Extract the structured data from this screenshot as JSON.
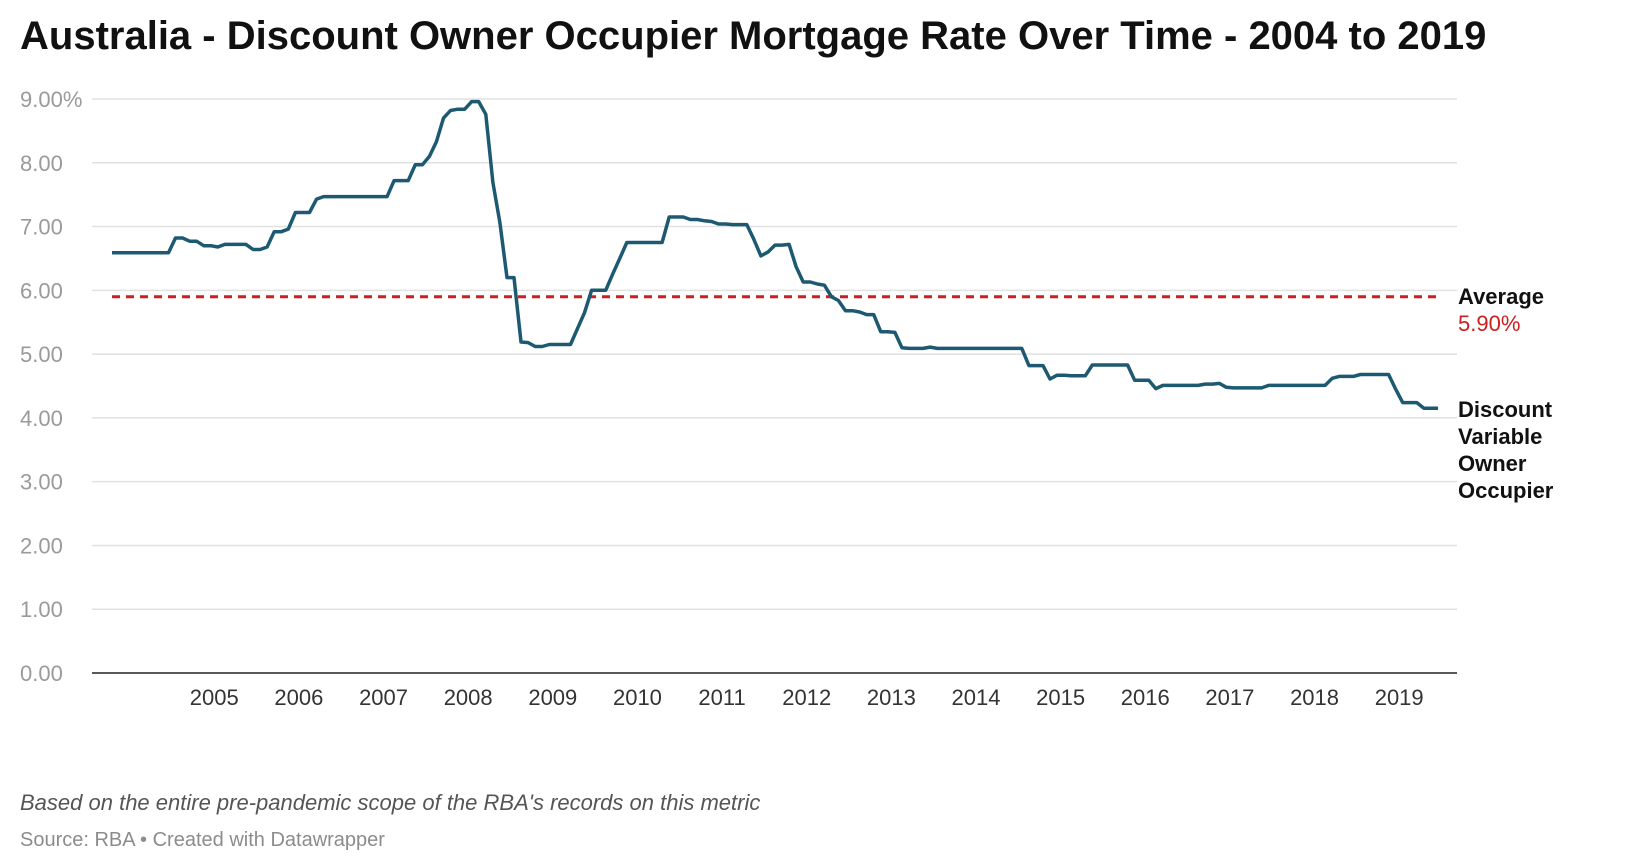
{
  "title": "Australia - Discount Owner Occupier Mortgage Rate Over Time - 2004 to 2019",
  "note": "Based on the entire pre-pandemic scope of the RBA's records on this metric",
  "source": "Source: RBA • Created with Datawrapper",
  "chart_data": {
    "type": "line",
    "title": "Australia - Discount Owner Occupier Mortgage Rate Over Time - 2004 to 2019",
    "x_tick_labels": [
      "2005",
      "2006",
      "2007",
      "2008",
      "2009",
      "2010",
      "2011",
      "2012",
      "2013",
      "2014",
      "2015",
      "2016",
      "2017",
      "2018",
      "2019"
    ],
    "y_tick_labels": [
      "9.00%",
      "8.00",
      "7.00",
      "6.00",
      "5.00",
      "4.00",
      "3.00",
      "2.00",
      "1.00",
      "0.00"
    ],
    "ylim": [
      0,
      9
    ],
    "grid": true,
    "series": [
      {
        "name": "Discount Variable Owner Occupier",
        "color": "#1d5a72",
        "x": [
          2004.25,
          2004.917,
          2005.0,
          2005.083,
          2005.167,
          2005.25,
          2005.333,
          2005.417,
          2005.5,
          2005.583,
          2005.667,
          2005.75,
          2005.833,
          2005.917,
          2006.0,
          2006.083,
          2006.167,
          2006.25,
          2006.333,
          2006.417,
          2006.5,
          2006.583,
          2006.667,
          2006.75,
          2006.833,
          2006.917,
          2007.0,
          2007.083,
          2007.167,
          2007.5,
          2007.583,
          2007.667,
          2007.75,
          2007.833,
          2007.917,
          2008.0,
          2008.083,
          2008.167,
          2008.25,
          2008.333,
          2008.417,
          2008.5,
          2008.583,
          2008.667,
          2008.75,
          2008.833,
          2008.917,
          2009.0,
          2009.083,
          2009.167,
          2009.25,
          2009.333,
          2009.417,
          2009.5,
          2009.583,
          2009.667,
          2009.75,
          2009.833,
          2009.917,
          2010.0,
          2010.083,
          2010.167,
          2010.25,
          2010.333,
          2010.417,
          2010.5,
          2010.583,
          2010.667,
          2010.75,
          2010.833,
          2010.917,
          2011.0,
          2011.083,
          2011.167,
          2011.25,
          2011.333,
          2011.417,
          2011.5,
          2011.583,
          2011.667,
          2011.75,
          2011.833,
          2011.917,
          2012.0,
          2012.083,
          2012.167,
          2012.25,
          2012.333,
          2012.417,
          2012.5,
          2012.583,
          2012.667,
          2012.75,
          2012.833,
          2012.917,
          2013.0,
          2013.083,
          2013.167,
          2013.25,
          2013.333,
          2013.417,
          2013.5,
          2013.583,
          2013.667,
          2013.75,
          2013.833,
          2013.917,
          2014.0,
          2014.5,
          2015.0,
          2015.083,
          2015.167,
          2015.25,
          2015.333,
          2015.417,
          2015.5,
          2015.583,
          2015.667,
          2015.75,
          2015.833,
          2015.917,
          2016.0,
          2016.083,
          2016.167,
          2016.25,
          2016.333,
          2016.417,
          2016.5,
          2016.583,
          2016.667,
          2016.75,
          2016.833,
          2016.917,
          2017.0,
          2017.083,
          2017.167,
          2017.25,
          2017.333,
          2017.417,
          2017.5,
          2017.583,
          2017.667,
          2017.75,
          2017.833,
          2017.917,
          2018.0,
          2018.083,
          2018.167,
          2018.25,
          2018.333,
          2018.417,
          2018.5,
          2018.583,
          2018.667,
          2018.75,
          2018.833,
          2018.917,
          2019.0,
          2019.083,
          2019.167,
          2019.25,
          2019.333,
          2019.417,
          2019.5,
          2019.583,
          2019.667,
          2019.75,
          2019.833,
          2019.917
        ],
        "values": [
          6.59,
          6.59,
          6.82,
          6.82,
          6.77,
          6.77,
          6.7,
          6.7,
          6.68,
          6.72,
          6.72,
          6.72,
          6.72,
          6.64,
          6.64,
          6.68,
          6.92,
          6.92,
          6.96,
          7.22,
          7.22,
          7.22,
          7.43,
          7.47,
          7.47,
          7.47,
          7.47,
          7.47,
          7.47,
          7.47,
          7.72,
          7.72,
          7.72,
          7.97,
          7.97,
          8.1,
          8.33,
          8.7,
          8.82,
          8.84,
          8.84,
          8.96,
          8.96,
          8.76,
          7.69,
          7.06,
          6.2,
          6.2,
          5.19,
          5.18,
          5.12,
          5.12,
          5.15,
          5.15,
          5.15,
          5.15,
          5.4,
          5.65,
          6.0,
          6.0,
          6.0,
          6.26,
          6.5,
          6.75,
          6.75,
          6.75,
          6.75,
          6.75,
          6.75,
          7.15,
          7.15,
          7.15,
          7.11,
          7.11,
          7.09,
          7.08,
          7.04,
          7.04,
          7.03,
          7.03,
          7.03,
          6.8,
          6.54,
          6.6,
          6.71,
          6.71,
          6.72,
          6.37,
          6.13,
          6.13,
          6.1,
          6.08,
          5.9,
          5.84,
          5.68,
          5.68,
          5.66,
          5.62,
          5.62,
          5.35,
          5.35,
          5.34,
          5.1,
          5.09,
          5.09,
          5.09,
          5.11,
          5.09,
          5.09,
          5.09,
          4.82,
          4.82,
          4.82,
          4.61,
          4.67,
          4.67,
          4.66,
          4.66,
          4.66,
          4.83,
          4.83,
          4.83,
          4.83,
          4.83,
          4.83,
          4.59,
          4.59,
          4.59,
          4.46,
          4.51,
          4.51,
          4.51,
          4.51,
          4.51,
          4.51,
          4.53,
          4.53,
          4.54,
          4.48,
          4.47,
          4.47,
          4.47,
          4.47,
          4.47,
          4.51,
          4.51,
          4.51,
          4.51,
          4.51,
          4.51,
          4.51,
          4.51,
          4.51,
          4.62,
          4.65,
          4.65,
          4.65,
          4.68,
          4.68,
          4.68,
          4.68,
          4.68,
          4.45,
          4.24,
          4.24,
          4.24,
          4.15,
          4.15,
          4.15
        ]
      }
    ],
    "average": {
      "label": "Average",
      "value_label": "5.90%",
      "value": 5.9,
      "color": "#cc1f1f"
    },
    "series_label_lines": [
      "Discount",
      "Variable",
      "Owner",
      "Occupier"
    ]
  }
}
